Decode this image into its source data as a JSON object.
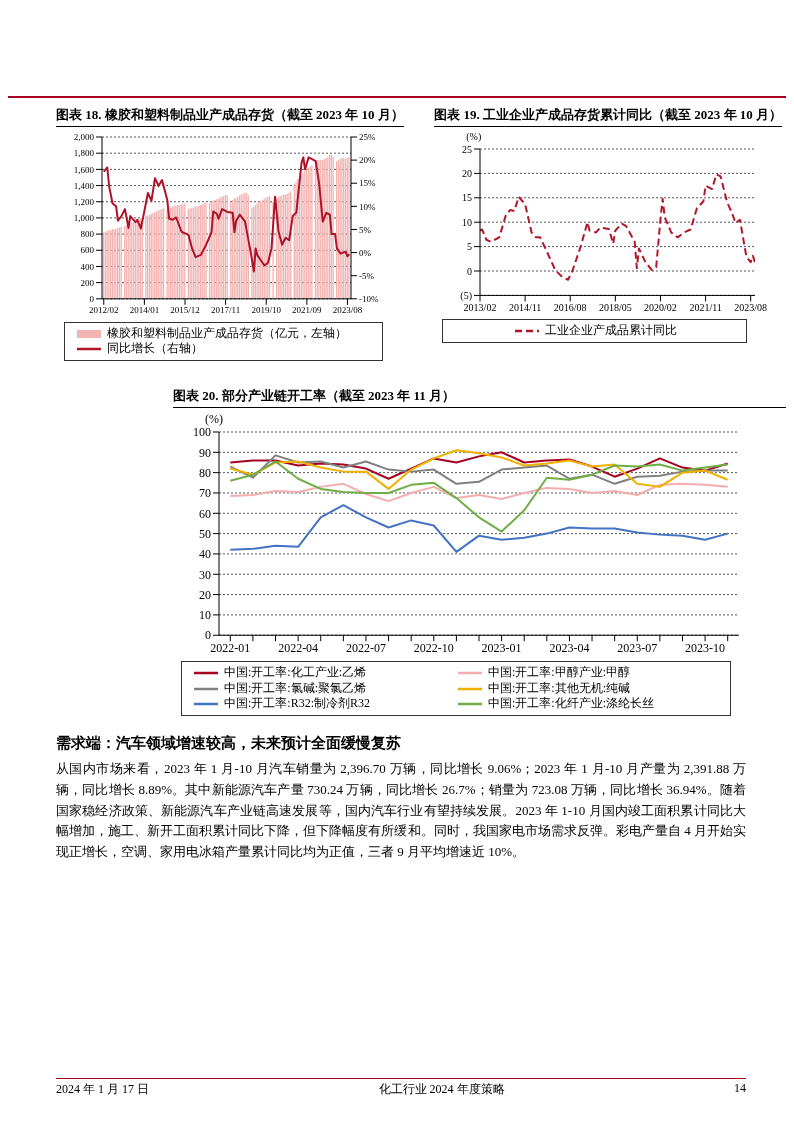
{
  "chart_data": [
    {
      "type": "bar",
      "title": "图表 18. 橡胶和塑料制品业产成品存货（截至 2023 年 10 月）",
      "legend": "bottom",
      "grid": "y",
      "xlim": [
        "2012-01",
        "2023-10"
      ],
      "xticks": [
        {
          "value": "2012-02",
          "label": "2012/02"
        },
        {
          "value": "2014-01",
          "label": "2014/01"
        },
        {
          "value": "2015-12",
          "label": "2015/12"
        },
        {
          "value": "2017-11",
          "label": "2017/11"
        },
        {
          "value": "2019-10",
          "label": "2019/10"
        },
        {
          "value": "2021-09",
          "label": "2021/09"
        },
        {
          "value": "2023-08",
          "label": "2023/08"
        }
      ],
      "ylim": [
        0,
        2000
      ],
      "yticks": [
        0,
        200,
        400,
        600,
        800,
        {
          "value": 1000,
          "label": "1,000"
        },
        {
          "value": 1200,
          "label": "1,200"
        },
        {
          "value": 1400,
          "label": "1,400"
        },
        {
          "value": 1600,
          "label": "1,600"
        },
        {
          "value": 1800,
          "label": "1,800"
        },
        {
          "value": 2000,
          "label": "2,000"
        }
      ],
      "y2lim": [
        -10,
        25
      ],
      "y2ticks": [
        {
          "value": -10,
          "label": "-10%"
        },
        {
          "value": -5,
          "label": "-5%"
        },
        {
          "value": 0,
          "label": "0%"
        },
        {
          "value": 5,
          "label": "5%"
        },
        {
          "value": 10,
          "label": "10%"
        },
        {
          "value": 15,
          "label": "15%"
        },
        {
          "value": 20,
          "label": "20%"
        },
        {
          "value": 25,
          "label": "25%"
        }
      ],
      "series": [
        {
          "name": "橡胶和塑料制品业产成品存货（亿元，左轴）",
          "color": "#f2b3b3",
          "x": [
            "2012-02",
            "2012-03",
            "2012-04",
            "2012-05",
            "2012-06",
            "2012-07",
            "2012-08",
            "2012-09",
            "2012-10",
            "2012-11",
            "2012-12",
            "2013-02",
            "2013-03",
            "2013-04",
            "2013-05",
            "2013-06",
            "2013-07",
            "2013-08",
            "2013-09",
            "2013-10",
            "2013-11",
            "2013-12",
            "2014-02",
            "2014-03",
            "2014-04",
            "2014-05",
            "2014-06",
            "2014-07",
            "2014-08",
            "2014-09",
            "2014-10",
            "2014-11",
            "2014-12",
            "2015-02",
            "2015-03",
            "2015-04",
            "2015-05",
            "2015-06",
            "2015-07",
            "2015-08",
            "2015-09",
            "2015-10",
            "2015-11",
            "2015-12",
            "2016-02",
            "2016-03",
            "2016-04",
            "2016-05",
            "2016-06",
            "2016-07",
            "2016-08",
            "2016-09",
            "2016-10",
            "2016-11",
            "2016-12",
            "2017-02",
            "2017-03",
            "2017-04",
            "2017-05",
            "2017-06",
            "2017-07",
            "2017-08",
            "2017-09",
            "2017-10",
            "2017-11",
            "2017-12",
            "2018-02",
            "2018-03",
            "2018-04",
            "2018-05",
            "2018-06",
            "2018-07",
            "2018-08",
            "2018-09",
            "2018-10",
            "2018-11",
            "2018-12",
            "2019-02",
            "2019-03",
            "2019-04",
            "2019-05",
            "2019-06",
            "2019-07",
            "2019-08",
            "2019-09",
            "2019-10",
            "2019-11",
            "2019-12",
            "2020-02",
            "2020-03",
            "2020-04",
            "2020-05",
            "2020-06",
            "2020-07",
            "2020-08",
            "2020-09",
            "2020-10",
            "2020-11",
            "2020-12",
            "2021-02",
            "2021-03",
            "2021-04",
            "2021-05",
            "2021-06",
            "2021-07",
            "2021-08",
            "2021-09",
            "2021-10",
            "2021-11",
            "2021-12",
            "2022-02",
            "2022-03",
            "2022-04",
            "2022-05",
            "2022-06",
            "2022-07",
            "2022-08",
            "2022-09",
            "2022-10",
            "2022-11",
            "2022-12",
            "2023-02",
            "2023-03",
            "2023-04",
            "2023-05",
            "2023-06",
            "2023-07",
            "2023-08",
            "2023-09"
          ],
          "values": [
            820,
            830,
            840,
            850,
            850,
            860,
            860,
            870,
            870,
            880,
            890,
            900,
            910,
            920,
            930,
            940,
            950,
            960,
            970,
            980,
            990,
            1000,
            1020,
            1030,
            1040,
            1050,
            1060,
            1070,
            1080,
            1090,
            1100,
            1110,
            1120,
            1110,
            1120,
            1130,
            1140,
            1150,
            1150,
            1160,
            1160,
            1170,
            1170,
            1180,
            1110,
            1120,
            1120,
            1130,
            1140,
            1140,
            1150,
            1160,
            1170,
            1180,
            1190,
            1180,
            1200,
            1210,
            1220,
            1230,
            1240,
            1250,
            1260,
            1270,
            1280,
            1280,
            1200,
            1220,
            1240,
            1250,
            1260,
            1280,
            1290,
            1300,
            1310,
            1310,
            1280,
            1130,
            1140,
            1160,
            1180,
            1200,
            1210,
            1220,
            1240,
            1250,
            1260,
            1270,
            1200,
            null,
            1240,
            1260,
            1270,
            1280,
            1290,
            1290,
            1300,
            1310,
            1330,
            1420,
            1450,
            1480,
            1510,
            1540,
            1560,
            1580,
            1600,
            1620,
            1640,
            1650,
            1700,
            1710,
            1720,
            1720,
            1720,
            1730,
            1740,
            1750,
            1780,
            1780,
            1760,
            1700,
            1720,
            1730,
            1740,
            1740,
            1730,
            1740,
            1750
          ]
        },
        {
          "name": "同比增长（右轴）",
          "type": "line",
          "axis": "y2",
          "color": "#b0122a",
          "line_style": "solid",
          "x": [
            "2012-02",
            "2012-04",
            "2012-05",
            "2012-07",
            "2012-09",
            "2012-10",
            "2012-12",
            "2013-02",
            "2013-04",
            "2013-05",
            "2013-08",
            "2013-09",
            "2013-11",
            "2014-01",
            "2014-03",
            "2014-05",
            "2014-07",
            "2014-09",
            "2014-11",
            "2015-02",
            "2015-03",
            "2015-05",
            "2015-07",
            "2015-10",
            "2016-01",
            "2016-02",
            "2016-04",
            "2016-06",
            "2016-09",
            "2016-12",
            "2017-03",
            "2017-04",
            "2017-06",
            "2017-07",
            "2017-09",
            "2017-12",
            "2018-03",
            "2018-04",
            "2018-05",
            "2018-07",
            "2018-10",
            "2019-01",
            "2019-03",
            "2019-04",
            "2019-05",
            "2019-09",
            "2019-11",
            "2020-01",
            "2020-03",
            "2020-05",
            "2020-07",
            "2020-09",
            "2020-11",
            "2021-01",
            "2021-03",
            "2021-06",
            "2021-07",
            "2021-08",
            "2021-10",
            "2021-12",
            "2022-02",
            "2022-04",
            "2022-06",
            "2022-08",
            "2022-10",
            "2022-11",
            "2023-01",
            "2023-02",
            "2023-04",
            "2023-07",
            "2023-08",
            "2023-09"
          ],
          "values": [
            17.5,
            18.4,
            14.4,
            10.6,
            10,
            6.9,
            7.9,
            9.4,
            5.3,
            7.9,
            6.6,
            7.1,
            5.2,
            9.0,
            12.9,
            11.2,
            16.1,
            14.4,
            15.7,
            11.3,
            7.3,
            7.1,
            7.6,
            4.5,
            4.0,
            3.8,
            0.9,
            -1.0,
            -0.5,
            1.7,
            4.4,
            8.9,
            8.4,
            7.3,
            9.4,
            8.8,
            8.6,
            4.4,
            6.9,
            8.2,
            6.7,
            0.5,
            -4.1,
            0.9,
            -0.6,
            -2.8,
            -2.2,
            0.9,
            12.1,
            4.5,
            1.7,
            3.2,
            2.7,
            7.9,
            8.6,
            19.4,
            20.6,
            18.0,
            20.6,
            20.2,
            19.8,
            14.8,
            6.7,
            8.6,
            8.2,
            4.0,
            4.0,
            0.9,
            -0.2,
            0.2,
            -0.8,
            -0.4
          ]
        }
      ]
    },
    {
      "type": "line",
      "title": "图表 19. 工业企业产成品存货累计同比（截至 2023 年 10 月）",
      "ylabel": "(%)",
      "legend": "bottom",
      "grid": "y",
      "line_style": "dashed",
      "xlim": [
        "2013-02",
        "2023-10"
      ],
      "xticks": [
        {
          "value": "2013-02",
          "label": "2013/02"
        },
        {
          "value": "2014-11",
          "label": "2014/11"
        },
        {
          "value": "2016-08",
          "label": "2016/08"
        },
        {
          "value": "2018-05",
          "label": "2018/05"
        },
        {
          "value": "2020-02",
          "label": "2020/02"
        },
        {
          "value": "2021-11",
          "label": "2021/11"
        },
        {
          "value": "2023-08",
          "label": "2023/08"
        }
      ],
      "ylim": [
        -5,
        25
      ],
      "yticks": [
        {
          "value": -5,
          "label": "(5)"
        },
        0,
        5,
        10,
        15,
        20,
        25
      ],
      "x": [
        "2013-02",
        "2013-03",
        "2013-05",
        "2013-07",
        "2013-11",
        "2014-02",
        "2014-04",
        "2014-06",
        "2014-08",
        "2014-11",
        "2015-02",
        "2015-04",
        "2015-06",
        "2015-09",
        "2016-01",
        "2016-04",
        "2016-07",
        "2016-09",
        "2017-01",
        "2017-04",
        "2017-05",
        "2017-08",
        "2017-10",
        "2018-02",
        "2018-04",
        "2018-05",
        "2018-08",
        "2018-10",
        "2019-02",
        "2019-03",
        "2019-04",
        "2019-07",
        "2019-10",
        "2019-12",
        "2020-02",
        "2020-03",
        "2020-04",
        "2020-07",
        "2020-10",
        "2021-01",
        "2021-04",
        "2021-07",
        "2021-10",
        "2021-11",
        "2022-02",
        "2022-04",
        "2022-06",
        "2022-09",
        "2022-11",
        "2023-01",
        "2023-03",
        "2023-06",
        "2023-08",
        "2023-09",
        "2023-10"
      ],
      "series": [
        {
          "name": "工业企业产成品累计同比",
          "color": "#b0172a",
          "values": [
            8.3,
            8.5,
            6.4,
            6.0,
            6.9,
            11.4,
            12.5,
            12.3,
            15.2,
            13.7,
            7.9,
            6.9,
            6.9,
            4.1,
            0.2,
            -1.1,
            -1.8,
            0,
            5.2,
            10.0,
            8.3,
            7.9,
            8.9,
            8.6,
            5.6,
            8.3,
            9.7,
            9.2,
            6.0,
            0.6,
            4.6,
            1.8,
            0.2,
            0.8,
            10.6,
            14.8,
            11.0,
            7.9,
            6.9,
            7.9,
            8.5,
            12.9,
            14.3,
            17.5,
            16.8,
            19.8,
            19.4,
            14.1,
            12.2,
            9.8,
            10.5,
            2.9,
            1.8,
            3.1,
            1.8
          ]
        }
      ]
    },
    {
      "type": "line",
      "title": "图表 20. 部分产业链开工率（截至 2023 年 11 月）",
      "ylabel": "(%)",
      "legend": "bottom",
      "grid": "y",
      "line_style": "solid",
      "categories": [
        "2022-01",
        null,
        null,
        "2022-04",
        null,
        null,
        "2022-07",
        null,
        null,
        "2022-10",
        null,
        null,
        "2023-01",
        null,
        null,
        "2023-04",
        null,
        null,
        "2023-07",
        null,
        null,
        "2023-10",
        null
      ],
      "ylim": [
        0,
        100
      ],
      "yticks": [
        0,
        10,
        20,
        30,
        40,
        50,
        60,
        70,
        80,
        90,
        100
      ],
      "series": [
        {
          "name": "中国:开工率:化工产业:乙烯",
          "color": "#a50021",
          "values": [
            85,
            86,
            86,
            83.5,
            84.5,
            84,
            82,
            77,
            82,
            87,
            85,
            88,
            90,
            85,
            86,
            86.5,
            83,
            78,
            82,
            87,
            82.5,
            81,
            84.5
          ]
        },
        {
          "name": "中国:开工率:甲醇产业:甲醇",
          "color": "#f4adad",
          "values": [
            68.5,
            69,
            71,
            70.5,
            73,
            74.5,
            69.5,
            66,
            70,
            73,
            67.5,
            69,
            67,
            70,
            72.5,
            72,
            70,
            71,
            69,
            74,
            74.5,
            74,
            73
          ]
        },
        {
          "name": "中国:开工率:氯碱:聚氯乙烯",
          "color": "#808080",
          "values": [
            83,
            77.5,
            88.5,
            85,
            85.5,
            82.5,
            85.5,
            81.5,
            80.5,
            81.5,
            74.5,
            75.5,
            81.5,
            82.5,
            83.5,
            77,
            79,
            74.5,
            78,
            78.5,
            80.5,
            81,
            81
          ]
        },
        {
          "name": "中国:开工率:其他无机:纯碱",
          "color": "#eeb100",
          "values": [
            82,
            79,
            85,
            85.5,
            82.5,
            80.5,
            80.5,
            72,
            81.5,
            87,
            91,
            89.5,
            87.5,
            83.5,
            84.5,
            86,
            83,
            84,
            74.5,
            73,
            80,
            81,
            76.5
          ]
        },
        {
          "name": "中国:开工率:R32:制冷剂R32",
          "color": "#4472c4",
          "values": [
            42,
            42.5,
            44,
            43.5,
            58,
            64,
            58,
            53,
            56.5,
            54,
            41,
            49,
            47,
            48,
            50,
            53,
            52.5,
            52.5,
            50.5,
            49.5,
            49,
            47,
            50
          ]
        },
        {
          "name": "中国:开工率:化纤产业:涤纶长丝",
          "color": "#70ad47",
          "values": [
            76,
            79,
            85.5,
            77,
            72,
            70.5,
            70,
            70,
            74,
            75,
            67.5,
            58,
            51,
            61.5,
            77.5,
            76.5,
            79,
            83.5,
            83,
            84,
            81,
            82.5,
            84
          ]
        }
      ],
      "annotations": [
        "需求端：汽车领域增速较高，未来预计全面缓慢复苏",
        "从国内市场来看，2023 年 1 月-10 月汽车销量为 2,396.70 万辆，同比增长 9.06%；2023 年 1 月-10 月产量为 2,391.88 万辆，同比增长 8.89%。其中新能源汽车产量 730.24 万辆，同比增长 26.7%；销量为 723.08 万辆，同比增长 36.94%。随着国家稳经济政策、新能源汽车产业链高速发展等，国内汽车行业有望持续发展。2023 年 1-10 月国内竣工面积累计同比大幅增加，施工、新开工面积累计同比下降，但下降幅度有所缓和。同时，我国家电市场需求反弹。彩电产量自 4 月开始实现正增长，空调、家用电冰箱产量累计同比均为正值，三者 9 月平均增速近 10%。",
        "2024 年 1 月 17 日",
        "化工行业 2024 年度策略",
        "14"
      ]
    }
  ]
}
